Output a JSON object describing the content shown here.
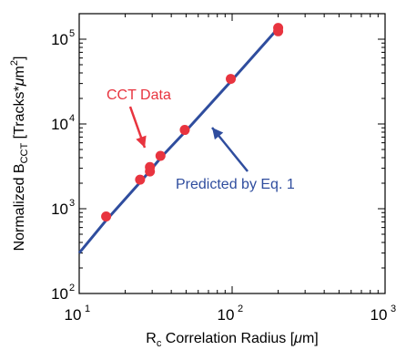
{
  "chart_data": {
    "type": "scatter",
    "title": "",
    "xlabel": {
      "prefix": "R",
      "sub": "c",
      "rest": " Correlation Radius [",
      "mu": "μ",
      "unit_end": "m]"
    },
    "ylabel": {
      "prefix": "Normalized B",
      "sub": "CCT",
      "rest": " [Tracks*",
      "mu": "μ",
      "unit": "m",
      "sup": "2",
      "close": "]"
    },
    "x_scale": "log",
    "y_scale": "log",
    "xlim": [
      10,
      1000
    ],
    "ylim": [
      100,
      200000
    ],
    "x_ticks": [
      {
        "base": "10",
        "exp": "1",
        "value": 10
      },
      {
        "base": "10",
        "exp": "2",
        "value": 100
      },
      {
        "base": "10",
        "exp": "3",
        "value": 1000
      }
    ],
    "y_ticks": [
      {
        "base": "10",
        "exp": "2",
        "value": 100
      },
      {
        "base": "10",
        "exp": "3",
        "value": 1000
      },
      {
        "base": "10",
        "exp": "4",
        "value": 10000
      },
      {
        "base": "10",
        "exp": "5",
        "value": 100000
      }
    ],
    "grid": false,
    "series": [
      {
        "name": "CCT Data",
        "kind": "markers",
        "color": "#e8343f",
        "points": [
          {
            "x": 15,
            "y": 810
          },
          {
            "x": 25,
            "y": 2200
          },
          {
            "x": 29,
            "y": 2750
          },
          {
            "x": 29,
            "y": 3100
          },
          {
            "x": 34,
            "y": 4200
          },
          {
            "x": 49,
            "y": 8500
          },
          {
            "x": 98,
            "y": 34000
          },
          {
            "x": 200,
            "y": 124000
          },
          {
            "x": 200,
            "y": 136000
          }
        ]
      },
      {
        "name": "Predicted by Eq. 1",
        "kind": "line",
        "color": "#2f4d9e",
        "points": [
          {
            "x": 10,
            "y": 300
          },
          {
            "x": 15,
            "y": 730
          },
          {
            "x": 25,
            "y": 2050
          },
          {
            "x": 29,
            "y": 2800
          },
          {
            "x": 35,
            "y": 4200
          },
          {
            "x": 50,
            "y": 8300
          },
          {
            "x": 100,
            "y": 33000
          },
          {
            "x": 200,
            "y": 135000
          }
        ]
      }
    ],
    "annotations": [
      {
        "text": "CCT Data",
        "color": "#e8343f"
      },
      {
        "text": "Predicted by Eq. 1",
        "color": "#2f4d9e"
      }
    ]
  }
}
